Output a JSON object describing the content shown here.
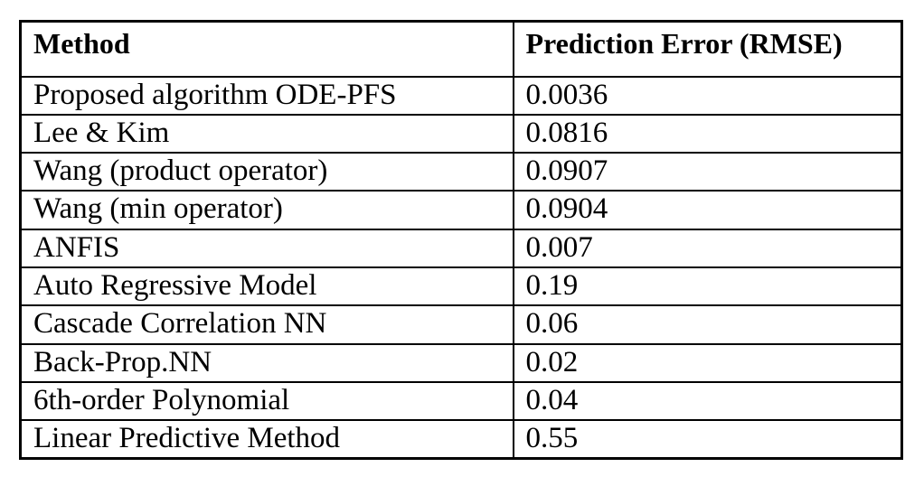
{
  "table": {
    "columns": [
      "Method",
      "Prediction Error (RMSE)"
    ],
    "rows": [
      [
        "Proposed algorithm ODE-PFS",
        "0.0036"
      ],
      [
        "Lee & Kim",
        "0.0816"
      ],
      [
        "Wang (product operator)",
        "0.0907"
      ],
      [
        "Wang (min operator)",
        "0.0904"
      ],
      [
        "ANFIS",
        "0.007"
      ],
      [
        "Auto Regressive Model",
        "0.19"
      ],
      [
        "Cascade Correlation NN",
        "0.06"
      ],
      [
        "Back-Prop.NN",
        "0.02"
      ],
      [
        "6th-order Polynomial",
        "0.04"
      ],
      [
        "Linear Predictive Method",
        "0.55"
      ]
    ]
  },
  "chart_data": {
    "type": "table",
    "title": "",
    "columns": [
      "Method",
      "Prediction Error (RMSE)"
    ],
    "categories": [
      "Proposed algorithm ODE-PFS",
      "Lee & Kim",
      "Wang (product operator)",
      "Wang (min operator)",
      "ANFIS",
      "Auto Regressive Model",
      "Cascade Correlation NN",
      "Back-Prop.NN",
      "6th-order Polynomial",
      "Linear Predictive Method"
    ],
    "values": [
      0.0036,
      0.0816,
      0.0907,
      0.0904,
      0.007,
      0.19,
      0.06,
      0.02,
      0.04,
      0.55
    ]
  },
  "colors": {
    "border": "#000000",
    "text": "#000000",
    "background": "#ffffff"
  }
}
